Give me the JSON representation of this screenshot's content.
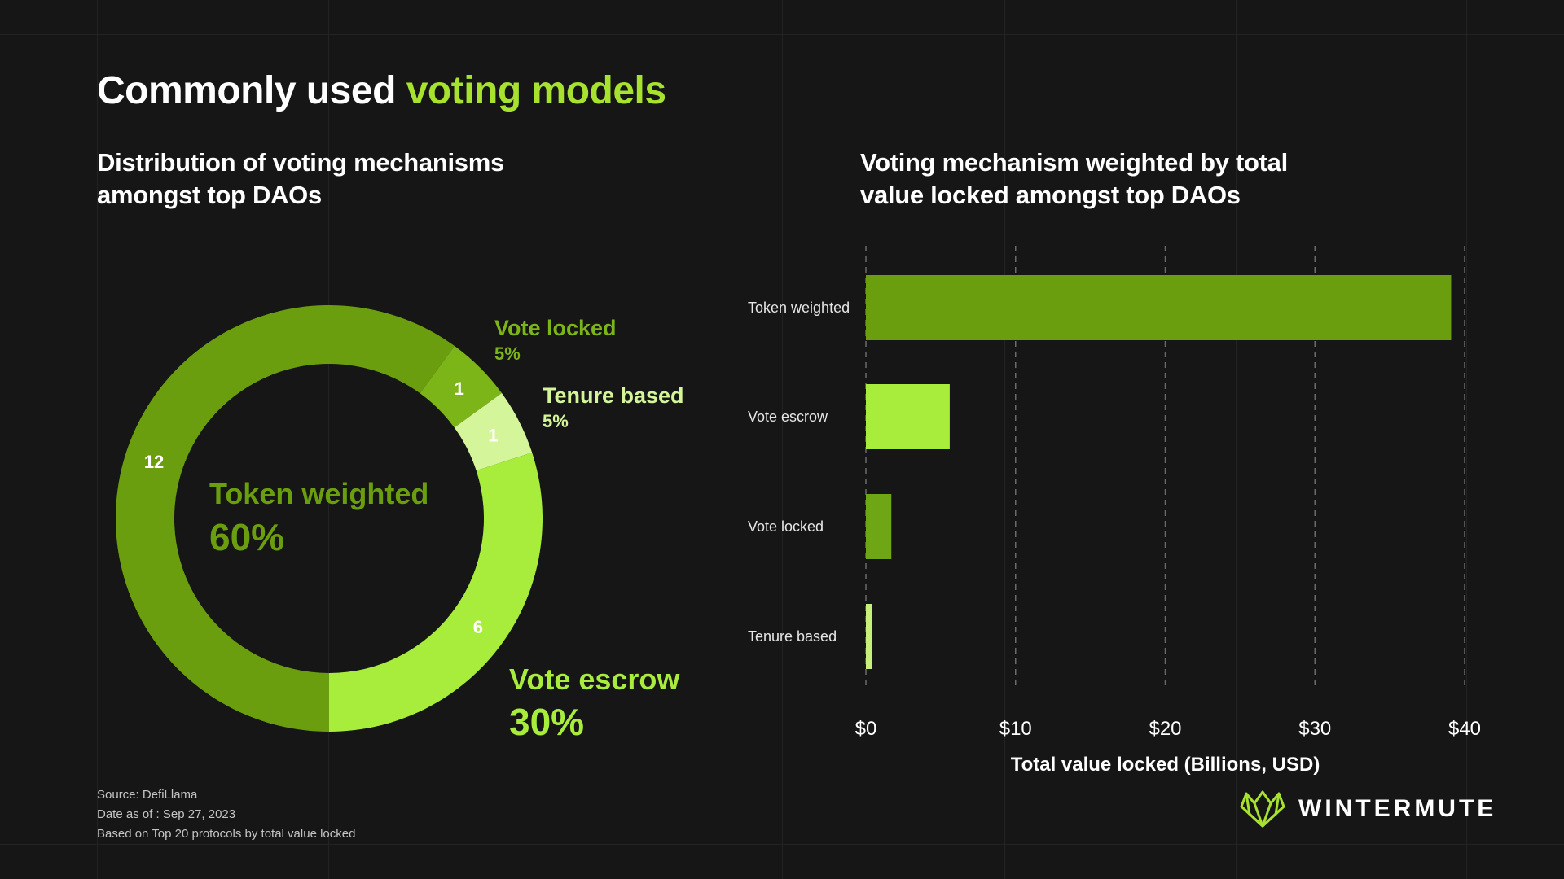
{
  "title": {
    "part1": "Commonly used ",
    "part2": "voting models",
    "accent_color": "#a6e22e"
  },
  "colors": {
    "token_weighted": "#6a9e0f",
    "vote_escrow": "#a8ec3c",
    "vote_locked": "#7cb518",
    "tenure_based": "#d4f59a",
    "bar_vote_locked": "#6fa615",
    "bar_tenure_based": "#c7f07a"
  },
  "chart_data": [
    {
      "type": "pie",
      "title_line1": "Distribution of voting mechanisms",
      "title_line2": "amongst top DAOs",
      "slices": [
        {
          "name": "Token weighted",
          "value": 12,
          "percent": "60%",
          "color": "#6a9e0f"
        },
        {
          "name": "Vote locked",
          "value": 1,
          "percent": "5%",
          "color": "#7cb518"
        },
        {
          "name": "Tenure based",
          "value": 1,
          "percent": "5%",
          "color": "#d4f59a"
        },
        {
          "name": "Vote escrow",
          "value": 6,
          "percent": "30%",
          "color": "#a8ec3c"
        }
      ]
    },
    {
      "type": "bar",
      "orientation": "horizontal",
      "title_line1": "Voting mechanism weighted by total",
      "title_line2": "value locked amongst top DAOs",
      "categories": [
        "Token weighted",
        "Vote escrow",
        "Vote locked",
        "Tenure based"
      ],
      "values": [
        39.1,
        5.6,
        1.7,
        0.4
      ],
      "colors": [
        "#6a9e0f",
        "#a8ec3c",
        "#6fa615",
        "#c7f07a"
      ],
      "xlim": [
        0,
        40
      ],
      "xticks": [
        0,
        10,
        20,
        30,
        40
      ],
      "xtick_labels": [
        "$0",
        "$10",
        "$20",
        "$30",
        "$40"
      ],
      "xlabel": "Total value locked (Billions, USD)",
      "grid": "vertical dashed"
    }
  ],
  "footnotes": {
    "source": "Source: DefiLlama",
    "date": "Date as of : Sep 27, 2023",
    "basis": "Based on Top 20 protocols by total value locked"
  },
  "brand": {
    "name": "WINTERMUTE",
    "logo_icon": "wintermute-logo-icon"
  }
}
